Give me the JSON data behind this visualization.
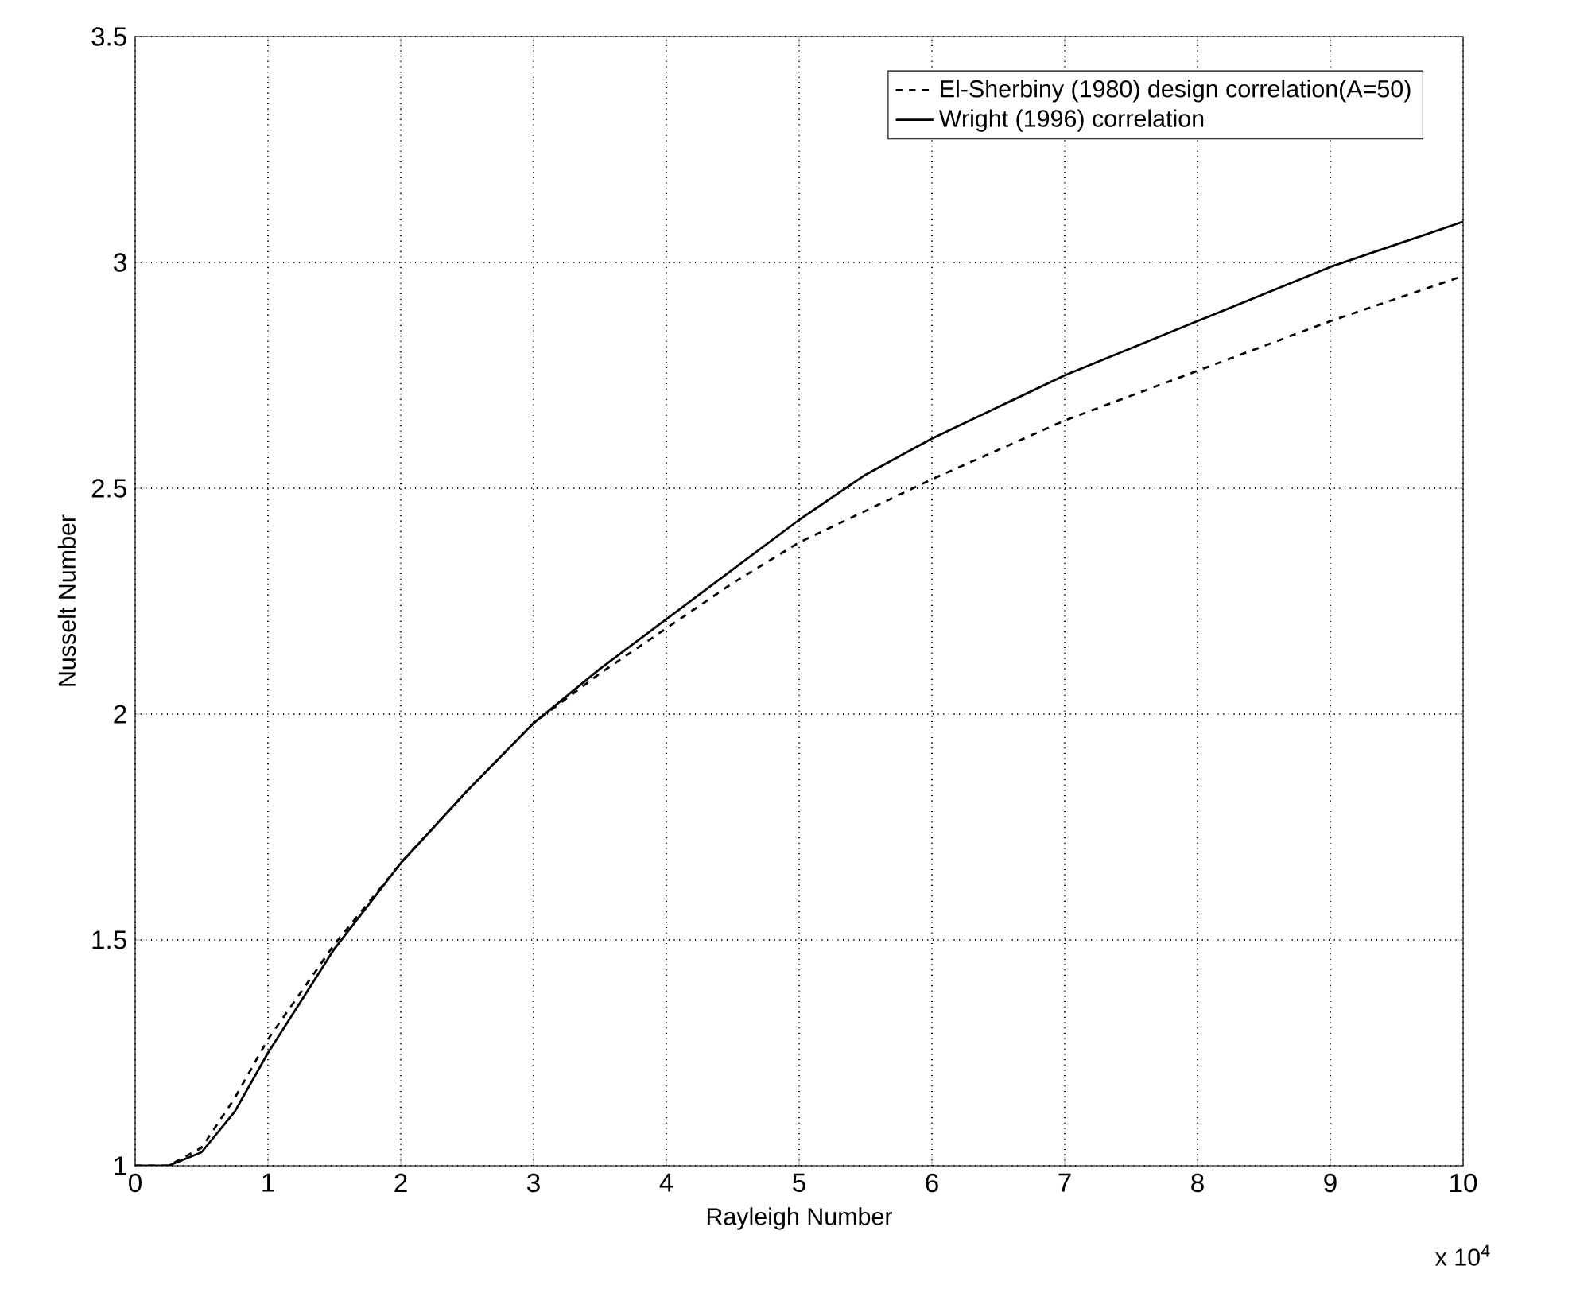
{
  "chart_data": {
    "type": "line",
    "xlabel": "Rayleigh Number",
    "ylabel": "Nusselt Number",
    "annotations": [
      "x 10$^{4}$"
    ],
    "xlim": [
      0,
      10
    ],
    "ylim": [
      1,
      3.5
    ],
    "xticks": [
      0,
      1,
      2,
      3,
      4,
      5,
      6,
      7,
      8,
      9,
      10
    ],
    "yticks": [
      1,
      1.5,
      2,
      2.5,
      3,
      3.5
    ],
    "grid": true,
    "legend": "top right",
    "marker": "none",
    "x": [
      0,
      0.25,
      0.5,
      0.75,
      1,
      1.5,
      2,
      2.5,
      3,
      3.5,
      4,
      4.5,
      5,
      5.5,
      6,
      7,
      8,
      9,
      10
    ],
    "series": [
      {
        "name": "El-Sherbiny (1980) design correlation(A=50)",
        "color": "#000000",
        "line_style": "dashed",
        "values": [
          1.0,
          1.0,
          1.04,
          1.15,
          1.28,
          1.49,
          1.67,
          1.83,
          1.98,
          2.09,
          2.19,
          2.29,
          2.38,
          2.45,
          2.52,
          2.65,
          2.76,
          2.87,
          2.97
        ]
      },
      {
        "name": "Wright (1996) correlation",
        "color": "#000000",
        "line_style": "solid",
        "values": [
          1.0,
          1.0,
          1.03,
          1.12,
          1.25,
          1.48,
          1.67,
          1.83,
          1.98,
          2.1,
          2.21,
          2.32,
          2.43,
          2.53,
          2.61,
          2.75,
          2.87,
          2.99,
          3.09
        ]
      }
    ]
  }
}
